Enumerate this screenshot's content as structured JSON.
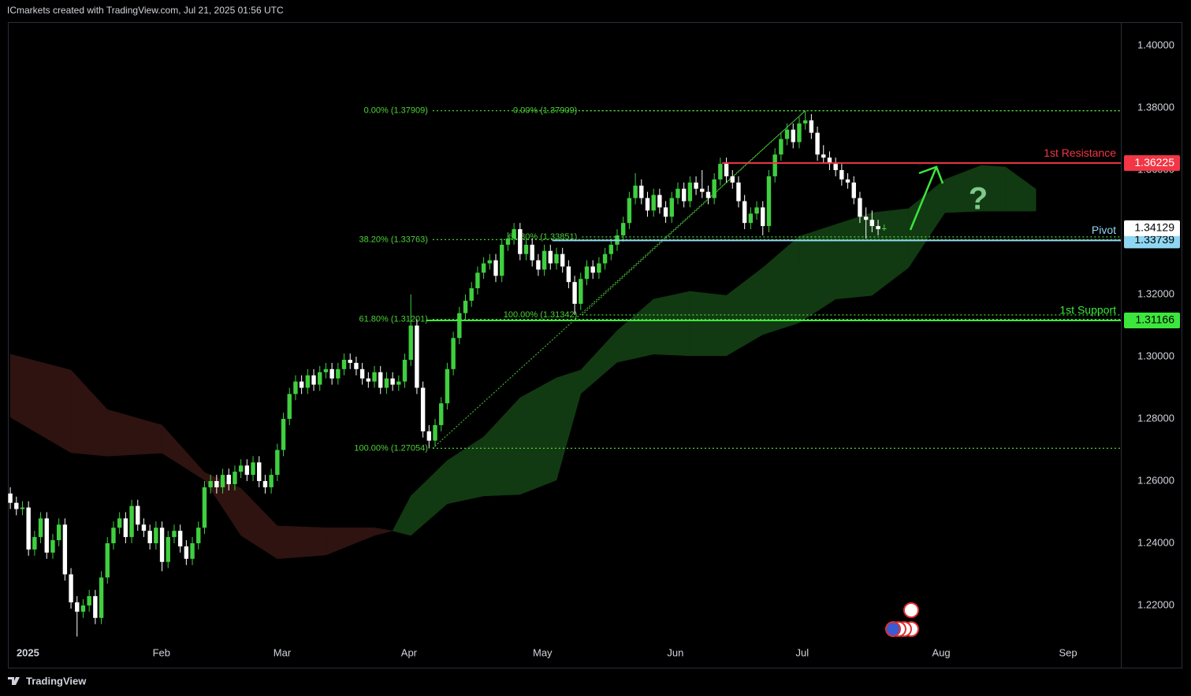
{
  "header": "ICmarkets created with TradingView.com, Jul 21, 2025 01:56 UTC",
  "footer": "TradingView",
  "chart_data": {
    "type": "candlestick",
    "up_color": "#3fcf3f",
    "down_color": "#ffffff",
    "xlim": [
      -0.4,
      183
    ],
    "xticks": [
      {
        "value": 2.9,
        "label": "2025"
      },
      {
        "value": 24.9,
        "label": "Feb"
      },
      {
        "value": 44.8,
        "label": "Mar"
      },
      {
        "value": 65.7,
        "label": "Apr"
      },
      {
        "value": 87.7,
        "label": "May"
      },
      {
        "value": 109.6,
        "label": "Jun"
      },
      {
        "value": 130.5,
        "label": "Jul"
      },
      {
        "value": 153.4,
        "label": "Aug"
      },
      {
        "value": 174.3,
        "label": "Sep"
      }
    ],
    "ylim": [
      1.2,
      1.4076
    ],
    "yticks": [
      {
        "value": 1.22,
        "label": "1.22000"
      },
      {
        "value": 1.24,
        "label": "1.24000"
      },
      {
        "value": 1.26,
        "label": "1.26000"
      },
      {
        "value": 1.28,
        "label": "1.28000"
      },
      {
        "value": 1.3,
        "label": "1.30000"
      },
      {
        "value": 1.32,
        "label": "1.32000"
      },
      {
        "value": 1.34,
        "label": "1.34000"
      },
      {
        "value": 1.36,
        "label": "1.36000"
      },
      {
        "value": 1.38,
        "label": "1.38000"
      },
      {
        "value": 1.4,
        "label": "1.40000"
      }
    ],
    "grid": false,
    "ohlc": [
      [
        1.256,
        1.258,
        1.251,
        1.253
      ],
      [
        1.253,
        1.255,
        1.249,
        1.251
      ],
      [
        1.251,
        1.2535,
        1.249,
        1.2515
      ],
      [
        1.2515,
        1.2535,
        1.236,
        1.238
      ],
      [
        1.238,
        1.244,
        1.236,
        1.242
      ],
      [
        1.242,
        1.25,
        1.24,
        1.248
      ],
      [
        1.248,
        1.25,
        1.235,
        1.237
      ],
      [
        1.237,
        1.243,
        1.235,
        1.241
      ],
      [
        1.241,
        1.248,
        1.239,
        1.246
      ],
      [
        1.246,
        1.248,
        1.228,
        1.23
      ],
      [
        1.23,
        1.232,
        1.219,
        1.221
      ],
      [
        1.221,
        1.223,
        1.21,
        1.218
      ],
      [
        1.218,
        1.222,
        1.216,
        1.22
      ],
      [
        1.22,
        1.225,
        1.218,
        1.223
      ],
      [
        1.223,
        1.225,
        1.214,
        1.216
      ],
      [
        1.216,
        1.231,
        1.214,
        1.229
      ],
      [
        1.229,
        1.242,
        1.227,
        1.24
      ],
      [
        1.24,
        1.247,
        1.238,
        1.245
      ],
      [
        1.245,
        1.25,
        1.243,
        1.248
      ],
      [
        1.248,
        1.25,
        1.24,
        1.242
      ],
      [
        1.242,
        1.254,
        1.24,
        1.252
      ],
      [
        1.252,
        1.254,
        1.244,
        1.246
      ],
      [
        1.246,
        1.248,
        1.242,
        1.244
      ],
      [
        1.244,
        1.246,
        1.238,
        1.24
      ],
      [
        1.24,
        1.247,
        1.238,
        1.245
      ],
      [
        1.245,
        1.247,
        1.231,
        1.234
      ],
      [
        1.234,
        1.244,
        1.232,
        1.242
      ],
      [
        1.242,
        1.246,
        1.24,
        1.244
      ],
      [
        1.244,
        1.246,
        1.237,
        1.239
      ],
      [
        1.239,
        1.241,
        1.233,
        1.235
      ],
      [
        1.235,
        1.242,
        1.233,
        1.24
      ],
      [
        1.24,
        1.247,
        1.238,
        1.245
      ],
      [
        1.245,
        1.26,
        1.243,
        1.258
      ],
      [
        1.258,
        1.262,
        1.256,
        1.26
      ],
      [
        1.26,
        1.262,
        1.256,
        1.258
      ],
      [
        1.258,
        1.264,
        1.256,
        1.262
      ],
      [
        1.262,
        1.264,
        1.257,
        1.259
      ],
      [
        1.259,
        1.265,
        1.257,
        1.263
      ],
      [
        1.263,
        1.267,
        1.261,
        1.265
      ],
      [
        1.265,
        1.267,
        1.26,
        1.262
      ],
      [
        1.262,
        1.268,
        1.26,
        1.266
      ],
      [
        1.266,
        1.268,
        1.258,
        1.26
      ],
      [
        1.26,
        1.262,
        1.256,
        1.258
      ],
      [
        1.258,
        1.264,
        1.256,
        1.262
      ],
      [
        1.262,
        1.272,
        1.26,
        1.27
      ],
      [
        1.27,
        1.282,
        1.268,
        1.28
      ],
      [
        1.28,
        1.29,
        1.278,
        1.288
      ],
      [
        1.288,
        1.294,
        1.286,
        1.292
      ],
      [
        1.292,
        1.294,
        1.288,
        1.29
      ],
      [
        1.29,
        1.296,
        1.288,
        1.294
      ],
      [
        1.294,
        1.296,
        1.289,
        1.291
      ],
      [
        1.291,
        1.297,
        1.289,
        1.295
      ],
      [
        1.295,
        1.298,
        1.293,
        1.296
      ],
      [
        1.296,
        1.298,
        1.291,
        1.293
      ],
      [
        1.293,
        1.298,
        1.291,
        1.296
      ],
      [
        1.296,
        1.301,
        1.294,
        1.299
      ],
      [
        1.299,
        1.301,
        1.296,
        1.298
      ],
      [
        1.298,
        1.3,
        1.294,
        1.296
      ],
      [
        1.296,
        1.298,
        1.291,
        1.293
      ],
      [
        1.293,
        1.295,
        1.29,
        1.292
      ],
      [
        1.292,
        1.297,
        1.29,
        1.295
      ],
      [
        1.295,
        1.297,
        1.288,
        1.29
      ],
      [
        1.29,
        1.295,
        1.288,
        1.293
      ],
      [
        1.293,
        1.295,
        1.289,
        1.291
      ],
      [
        1.291,
        1.294,
        1.289,
        1.292
      ],
      [
        1.292,
        1.301,
        1.29,
        1.299
      ],
      [
        1.299,
        1.32,
        1.297,
        1.31
      ],
      [
        1.31,
        1.312,
        1.288,
        1.29
      ],
      [
        1.29,
        1.292,
        1.274,
        1.276
      ],
      [
        1.276,
        1.278,
        1.2705,
        1.273
      ],
      [
        1.273,
        1.28,
        1.271,
        1.278
      ],
      [
        1.278,
        1.287,
        1.276,
        1.285
      ],
      [
        1.285,
        1.298,
        1.283,
        1.296
      ],
      [
        1.296,
        1.308,
        1.294,
        1.306
      ],
      [
        1.306,
        1.316,
        1.304,
        1.314
      ],
      [
        1.314,
        1.32,
        1.312,
        1.318
      ],
      [
        1.318,
        1.324,
        1.316,
        1.322
      ],
      [
        1.322,
        1.329,
        1.32,
        1.327
      ],
      [
        1.327,
        1.332,
        1.325,
        1.33
      ],
      [
        1.33,
        1.333,
        1.328,
        1.331
      ],
      [
        1.331,
        1.333,
        1.324,
        1.326
      ],
      [
        1.326,
        1.338,
        1.324,
        1.336
      ],
      [
        1.336,
        1.34,
        1.334,
        1.338
      ],
      [
        1.338,
        1.343,
        1.336,
        1.341
      ],
      [
        1.341,
        1.343,
        1.331,
        1.333
      ],
      [
        1.333,
        1.338,
        1.331,
        1.336
      ],
      [
        1.336,
        1.338,
        1.329,
        1.331
      ],
      [
        1.331,
        1.333,
        1.326,
        1.328
      ],
      [
        1.328,
        1.336,
        1.326,
        1.334
      ],
      [
        1.334,
        1.336,
        1.328,
        1.33
      ],
      [
        1.33,
        1.335,
        1.328,
        1.333
      ],
      [
        1.333,
        1.335,
        1.327,
        1.329
      ],
      [
        1.329,
        1.331,
        1.322,
        1.324
      ],
      [
        1.324,
        1.326,
        1.3134,
        1.317
      ],
      [
        1.317,
        1.327,
        1.315,
        1.325
      ],
      [
        1.325,
        1.331,
        1.323,
        1.329
      ],
      [
        1.329,
        1.331,
        1.325,
        1.327
      ],
      [
        1.327,
        1.332,
        1.325,
        1.33
      ],
      [
        1.33,
        1.335,
        1.328,
        1.333
      ],
      [
        1.333,
        1.338,
        1.331,
        1.336
      ],
      [
        1.336,
        1.341,
        1.334,
        1.339
      ],
      [
        1.339,
        1.345,
        1.337,
        1.343
      ],
      [
        1.343,
        1.353,
        1.341,
        1.351
      ],
      [
        1.351,
        1.359,
        1.349,
        1.355
      ],
      [
        1.355,
        1.357,
        1.349,
        1.351
      ],
      [
        1.351,
        1.353,
        1.345,
        1.347
      ],
      [
        1.347,
        1.354,
        1.345,
        1.352
      ],
      [
        1.352,
        1.354,
        1.346,
        1.348
      ],
      [
        1.348,
        1.35,
        1.343,
        1.345
      ],
      [
        1.345,
        1.353,
        1.343,
        1.351
      ],
      [
        1.351,
        1.356,
        1.349,
        1.354
      ],
      [
        1.354,
        1.356,
        1.348,
        1.35
      ],
      [
        1.35,
        1.358,
        1.348,
        1.356
      ],
      [
        1.356,
        1.358,
        1.352,
        1.354
      ],
      [
        1.354,
        1.36,
        1.351,
        1.353
      ],
      [
        1.353,
        1.355,
        1.349,
        1.351
      ],
      [
        1.351,
        1.359,
        1.349,
        1.357
      ],
      [
        1.357,
        1.364,
        1.355,
        1.362
      ],
      [
        1.362,
        1.364,
        1.356,
        1.358
      ],
      [
        1.358,
        1.36,
        1.354,
        1.356
      ],
      [
        1.356,
        1.358,
        1.348,
        1.35
      ],
      [
        1.35,
        1.352,
        1.341,
        1.343
      ],
      [
        1.343,
        1.348,
        1.341,
        1.346
      ],
      [
        1.346,
        1.35,
        1.344,
        1.348
      ],
      [
        1.348,
        1.35,
        1.339,
        1.342
      ],
      [
        1.342,
        1.36,
        1.34,
        1.358
      ],
      [
        1.358,
        1.367,
        1.356,
        1.365
      ],
      [
        1.365,
        1.372,
        1.363,
        1.37
      ],
      [
        1.37,
        1.375,
        1.368,
        1.373
      ],
      [
        1.373,
        1.375,
        1.367,
        1.369
      ],
      [
        1.369,
        1.377,
        1.367,
        1.375
      ],
      [
        1.375,
        1.3791,
        1.373,
        1.376
      ],
      [
        1.376,
        1.378,
        1.37,
        1.372
      ],
      [
        1.372,
        1.374,
        1.363,
        1.365
      ],
      [
        1.365,
        1.368,
        1.362,
        1.364
      ],
      [
        1.364,
        1.366,
        1.36,
        1.362
      ],
      [
        1.362,
        1.364,
        1.358,
        1.36
      ],
      [
        1.36,
        1.362,
        1.355,
        1.357
      ],
      [
        1.357,
        1.359,
        1.354,
        1.356
      ],
      [
        1.356,
        1.358,
        1.349,
        1.351
      ],
      [
        1.351,
        1.353,
        1.343,
        1.345
      ],
      [
        1.345,
        1.348,
        1.338,
        1.344
      ],
      [
        1.344,
        1.347,
        1.34,
        1.342
      ],
      [
        1.342,
        1.344,
        1.339,
        1.341
      ],
      [
        1.341,
        1.3425,
        1.3405,
        1.3413
      ]
    ],
    "last_price": 1.34129,
    "cloud": {
      "bull_color": "#123a12",
      "bear_color": "#2e1310",
      "x": [
        0,
        10,
        16,
        25,
        32,
        38,
        44,
        52,
        60,
        63,
        66,
        72,
        78,
        84,
        90,
        94,
        100,
        106,
        112,
        118,
        124,
        130,
        136,
        142,
        148,
        154,
        160,
        164,
        169
      ],
      "span_a": [
        1.2805,
        1.2691,
        1.268,
        1.269,
        1.2603,
        1.2425,
        1.235,
        1.2362,
        1.2425,
        1.244,
        1.2552,
        1.2666,
        1.2742,
        1.2868,
        1.2932,
        1.2957,
        1.3084,
        1.3185,
        1.321,
        1.3197,
        1.3286,
        1.3387,
        1.3425,
        1.3463,
        1.3476,
        1.357,
        1.3615,
        1.361,
        1.3539
      ],
      "span_b": [
        1.3008,
        1.2957,
        1.283,
        1.278,
        1.2628,
        1.2577,
        1.2456,
        1.245,
        1.245,
        1.244,
        1.2425,
        1.2527,
        1.2552,
        1.2557,
        1.2603,
        1.2881,
        1.2982,
        1.3008,
        1.3003,
        1.3003,
        1.3071,
        1.3109,
        1.3185,
        1.3197,
        1.3286,
        1.3463,
        1.3468,
        1.3468,
        1.3468
      ]
    },
    "fib_color": "#4cd137",
    "fibonacci": [
      {
        "start": 69.6,
        "levels": [
          {
            "label": "0.00% (1.37909)",
            "value": 1.37909
          },
          {
            "label": "38.20% (1.33763)",
            "value": 1.33763
          },
          {
            "label": "61.80% (1.31201)",
            "value": 1.31201
          },
          {
            "label": "100.00% (1.27054)",
            "value": 1.27054
          }
        ]
      },
      {
        "start": 94.2,
        "levels": [
          {
            "label": "0.00% (1.37909)",
            "value": 1.37909
          },
          {
            "label": "61.80% (1.33851)",
            "value": 1.33851
          },
          {
            "label": "100.00% (1.31342)",
            "value": 1.31342
          }
        ]
      }
    ],
    "trendlines": [
      {
        "x": [
          69.6,
          131
        ],
        "y": [
          1.27054,
          1.37909
        ]
      },
      {
        "x": [
          94.2,
          131
        ],
        "y": [
          1.31342,
          1.37909
        ]
      }
    ],
    "levels": [
      {
        "name": "1st Resistance",
        "value": 1.36225,
        "color": "#f23645",
        "start": 117.3
      },
      {
        "name": "Pivot",
        "value": 1.33739,
        "color": "#8fd6f2",
        "start": 89.3
      },
      {
        "name": "1st Support",
        "value": 1.31166,
        "color": "#3ce63c",
        "start": 68.5
      }
    ],
    "note": "?"
  }
}
